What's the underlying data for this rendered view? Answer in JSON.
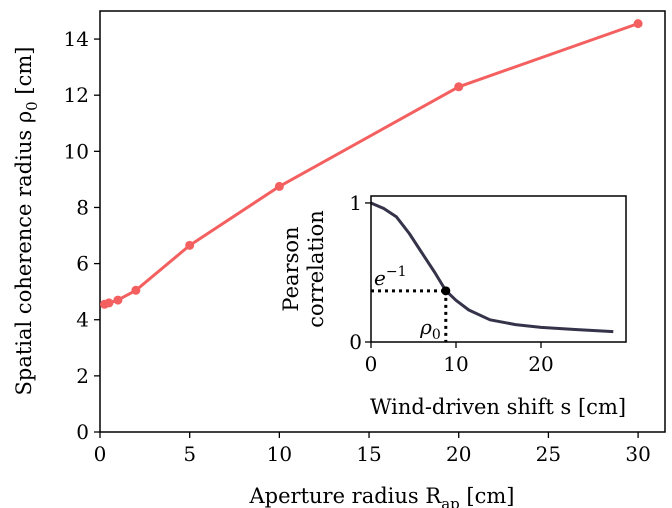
{
  "chart_data": [
    {
      "type": "line",
      "xlabel": "Aperture radius R",
      "xlabel_sub": "ap",
      "xlabel_unit": " [cm]",
      "ylabel": "Spatial coherence radius ρ",
      "ylabel_sub": "0",
      "ylabel_unit": " [cm]",
      "xlim": [
        0,
        31.5
      ],
      "ylim": [
        0,
        15
      ],
      "xticks": [
        0,
        5,
        10,
        15,
        20,
        25,
        30
      ],
      "yticks": [
        0,
        2,
        4,
        6,
        8,
        10,
        12,
        14
      ],
      "series": [
        {
          "color": "#f45f5f",
          "marker": "circle",
          "x": [
            0.25,
            0.5,
            1,
            2,
            5,
            10,
            20,
            30
          ],
          "y": [
            4.55,
            4.6,
            4.7,
            5.05,
            6.65,
            8.75,
            12.3,
            14.55
          ]
        }
      ],
      "grid": false
    },
    {
      "type": "line",
      "inset": true,
      "xlabel": "Wind-driven shift s",
      "xlabel_unit": " [cm]",
      "ylabel_line1": "Pearson",
      "ylabel_line2": "correlation",
      "xlim": [
        0,
        30
      ],
      "ylim": [
        0,
        1.05
      ],
      "xticks": [
        0,
        10,
        20
      ],
      "ytick_labels": [
        "0",
        "1"
      ],
      "yticks": [
        0,
        1
      ],
      "series": [
        {
          "color": "#35334a",
          "x": [
            0,
            1.5,
            3,
            4.5,
            6,
            7.5,
            8.8,
            10,
            11.5,
            14,
            17,
            20,
            24,
            28.5
          ],
          "y": [
            1.0,
            0.96,
            0.9,
            0.78,
            0.64,
            0.5,
            0.37,
            0.3,
            0.23,
            0.16,
            0.125,
            0.105,
            0.09,
            0.075
          ]
        }
      ],
      "annotation": {
        "point_x": 8.8,
        "point_y": 0.368,
        "e_base": "e",
        "e_exp": "−1",
        "rho": "ρ",
        "rho_sub": "0"
      },
      "grid": false
    }
  ]
}
